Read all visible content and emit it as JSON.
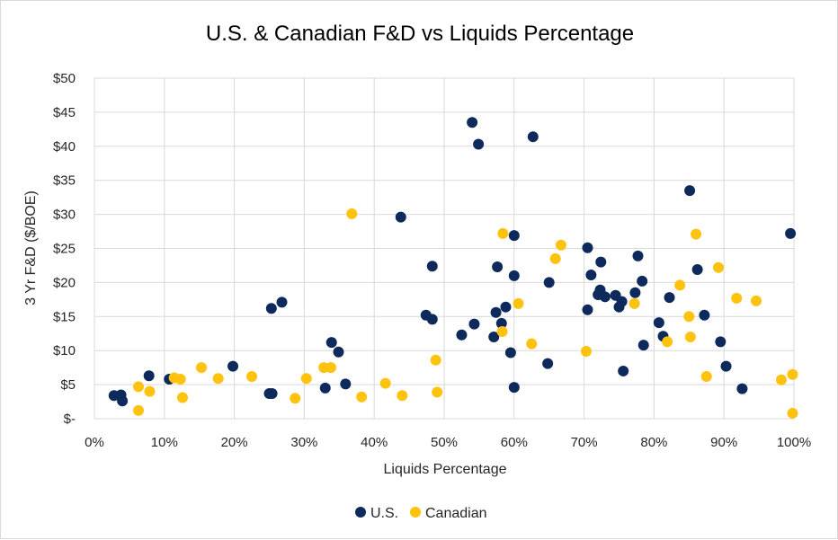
{
  "chart_data": {
    "type": "scatter",
    "title": "U.S. & Canadian F&D vs Liquids Percentage",
    "xlabel": "Liquids Percentage",
    "ylabel": "3 Yr F&D ($/BOE)",
    "xlim": [
      0,
      1
    ],
    "ylim": [
      0,
      50
    ],
    "x_ticks": [
      0,
      0.1,
      0.2,
      0.3,
      0.4,
      0.5,
      0.6,
      0.7,
      0.8,
      0.9,
      1.0
    ],
    "x_tick_labels": [
      "0%",
      "10%",
      "20%",
      "30%",
      "40%",
      "50%",
      "60%",
      "70%",
      "80%",
      "90%",
      "100%"
    ],
    "y_ticks": [
      0,
      5,
      10,
      15,
      20,
      25,
      30,
      35,
      40,
      45,
      50
    ],
    "y_tick_labels": [
      "$-",
      "$5",
      "$10",
      "$15",
      "$20",
      "$25",
      "$30",
      "$35",
      "$40",
      "$45",
      "$50"
    ],
    "grid": "both",
    "legend_position": "bottom",
    "series": [
      {
        "name": "U.S.",
        "color": "#0e2a5c",
        "points": [
          [
            0.028,
            3.4
          ],
          [
            0.038,
            3.5
          ],
          [
            0.04,
            2.6
          ],
          [
            0.078,
            6.3
          ],
          [
            0.107,
            5.8
          ],
          [
            0.198,
            7.7
          ],
          [
            0.25,
            3.7
          ],
          [
            0.254,
            3.7
          ],
          [
            0.253,
            16.2
          ],
          [
            0.268,
            17.1
          ],
          [
            0.33,
            4.5
          ],
          [
            0.339,
            11.2
          ],
          [
            0.349,
            9.8
          ],
          [
            0.359,
            5.1
          ],
          [
            0.438,
            29.6
          ],
          [
            0.474,
            15.2
          ],
          [
            0.483,
            14.6
          ],
          [
            0.483,
            22.4
          ],
          [
            0.525,
            12.3
          ],
          [
            0.54,
            43.5
          ],
          [
            0.543,
            13.9
          ],
          [
            0.549,
            40.3
          ],
          [
            0.571,
            12.0
          ],
          [
            0.574,
            15.6
          ],
          [
            0.576,
            22.3
          ],
          [
            0.582,
            14.0
          ],
          [
            0.588,
            16.4
          ],
          [
            0.595,
            9.7
          ],
          [
            0.6,
            26.9
          ],
          [
            0.6,
            21.0
          ],
          [
            0.6,
            4.6
          ],
          [
            0.648,
            8.1
          ],
          [
            0.65,
            20.0
          ],
          [
            0.627,
            41.4
          ],
          [
            0.705,
            25.1
          ],
          [
            0.71,
            21.1
          ],
          [
            0.705,
            16.0
          ],
          [
            0.72,
            18.2
          ],
          [
            0.723,
            18.9
          ],
          [
            0.724,
            23.0
          ],
          [
            0.73,
            17.9
          ],
          [
            0.745,
            18.1
          ],
          [
            0.75,
            16.4
          ],
          [
            0.754,
            17.2
          ],
          [
            0.756,
            7.0
          ],
          [
            0.773,
            18.5
          ],
          [
            0.777,
            23.9
          ],
          [
            0.783,
            20.2
          ],
          [
            0.785,
            10.8
          ],
          [
            0.807,
            14.1
          ],
          [
            0.813,
            12.1
          ],
          [
            0.822,
            17.8
          ],
          [
            0.851,
            33.5
          ],
          [
            0.862,
            21.9
          ],
          [
            0.872,
            15.2
          ],
          [
            0.895,
            11.3
          ],
          [
            0.903,
            7.7
          ],
          [
            0.926,
            4.4
          ],
          [
            0.995,
            27.2
          ]
        ]
      },
      {
        "name": "Canadian",
        "color": "#ffc20e",
        "points": [
          [
            0.063,
            4.7
          ],
          [
            0.063,
            1.2
          ],
          [
            0.079,
            4.0
          ],
          [
            0.114,
            6.0
          ],
          [
            0.123,
            5.8
          ],
          [
            0.126,
            3.1
          ],
          [
            0.153,
            7.5
          ],
          [
            0.177,
            5.9
          ],
          [
            0.225,
            6.2
          ],
          [
            0.287,
            3.0
          ],
          [
            0.303,
            5.9
          ],
          [
            0.328,
            7.5
          ],
          [
            0.338,
            7.5
          ],
          [
            0.368,
            30.1
          ],
          [
            0.382,
            3.2
          ],
          [
            0.416,
            5.2
          ],
          [
            0.44,
            3.4
          ],
          [
            0.488,
            8.6
          ],
          [
            0.49,
            3.9
          ],
          [
            0.584,
            27.2
          ],
          [
            0.583,
            12.8
          ],
          [
            0.606,
            16.9
          ],
          [
            0.625,
            11.0
          ],
          [
            0.659,
            23.5
          ],
          [
            0.667,
            25.5
          ],
          [
            0.703,
            9.9
          ],
          [
            0.772,
            16.9
          ],
          [
            0.819,
            11.3
          ],
          [
            0.837,
            19.6
          ],
          [
            0.85,
            15.0
          ],
          [
            0.852,
            12.0
          ],
          [
            0.86,
            27.1
          ],
          [
            0.875,
            6.2
          ],
          [
            0.892,
            22.2
          ],
          [
            0.918,
            17.7
          ],
          [
            0.946,
            17.3
          ],
          [
            0.982,
            5.7
          ],
          [
            0.998,
            6.5
          ],
          [
            0.998,
            0.8
          ]
        ]
      }
    ]
  }
}
